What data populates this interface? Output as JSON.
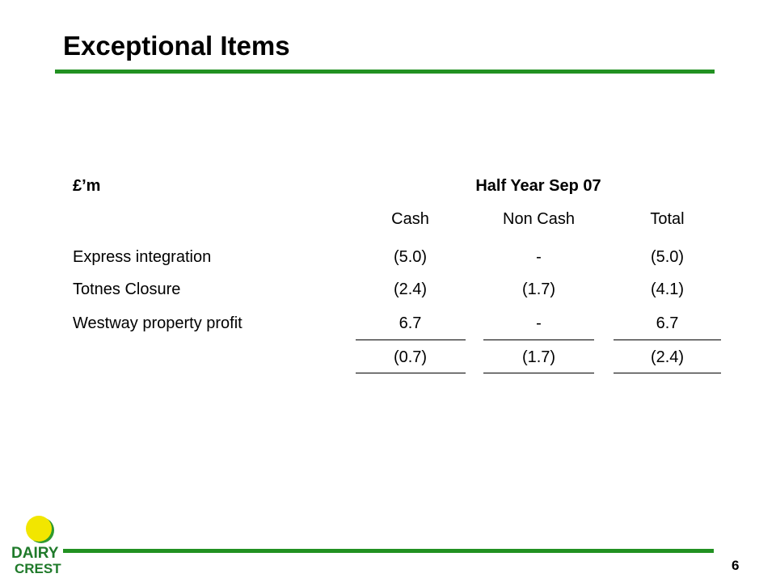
{
  "slide": {
    "title": "Exceptional Items",
    "page_number": "6"
  },
  "logo": {
    "line1": "DAIRY",
    "line2": "CREST"
  },
  "table": {
    "unit_label": "£’m",
    "period_header": "Half Year Sep 07",
    "columns": [
      "Cash",
      "Non Cash",
      "Total"
    ],
    "rows": [
      {
        "label": "Express integration",
        "values": [
          "(5.0)",
          "-",
          "(5.0)"
        ]
      },
      {
        "label": "Totnes Closure",
        "values": [
          "(2.4)",
          "(1.7)",
          "(4.1)"
        ]
      },
      {
        "label": "Westway property profit",
        "values": [
          "6.7",
          "-",
          "6.7"
        ]
      }
    ],
    "totals": [
      "(0.7)",
      "(1.7)",
      "(2.4)"
    ]
  },
  "colors": {
    "rule_green": "#229122",
    "logo_yellow": "#f2e600",
    "logo_green": "#1f7a2a"
  }
}
